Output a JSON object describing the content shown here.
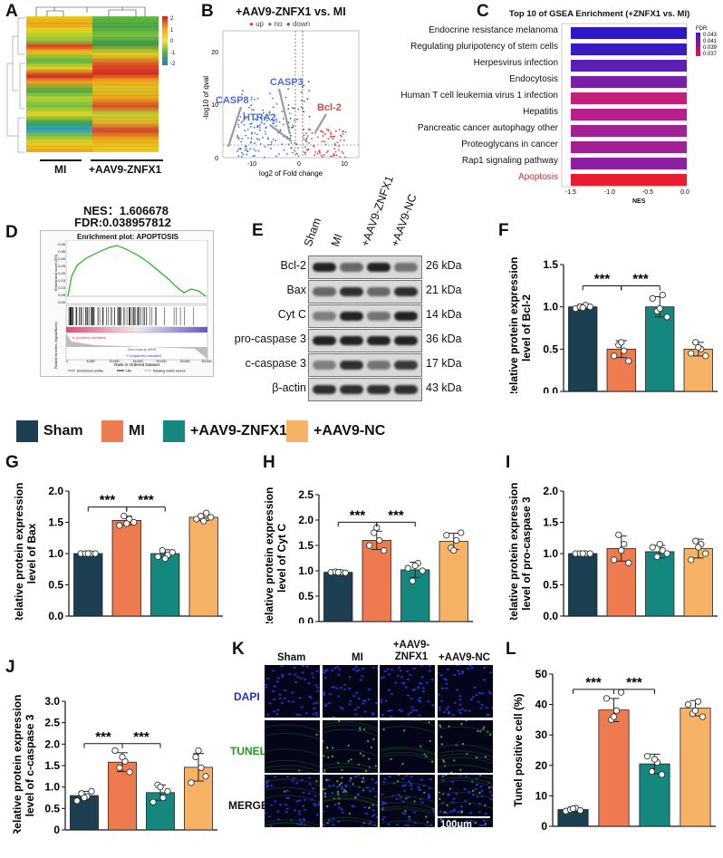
{
  "panels": {
    "A": {
      "letter": "A",
      "group_labels": [
        "MI",
        "+AAV9-ZNFX1"
      ],
      "colorbar_ticks": [
        "2",
        "1",
        "0",
        "-1",
        "-2"
      ]
    },
    "B": {
      "letter": "B",
      "title": "+AAV9-ZNFX1 vs. MI",
      "legend": [
        "up",
        "no",
        "down"
      ],
      "xlabel": "log2 of Fold change",
      "ylabel": "-log10 of qval",
      "xticks": [
        "-10",
        "0",
        "10"
      ],
      "yticks": [
        "0",
        "10",
        "20"
      ],
      "genes": [
        "CASP3",
        "CASP8",
        "HTRA2",
        "Bcl-2"
      ]
    },
    "C": {
      "letter": "C",
      "title": "Top 10 of GSEA Enrichment (+ZNFX1 vs. MI)",
      "fdr_title": "FDR",
      "fdr_ticks": [
        "0.043",
        "0.041",
        "0.039",
        "0.037"
      ],
      "xlabel": "NES",
      "xticks": [
        "-1.5",
        "-1.0",
        "-0.5",
        "0.0"
      ]
    },
    "D": {
      "letter": "D",
      "nes": "NES：1.606678",
      "fdr": "FDR:0.038957812",
      "plot_title": "Enrichment plot: APOPTOSIS",
      "es_label": "Enrichment score (ES)",
      "rank_label": "Ranked list metric (Signal2Noise)",
      "xlabel": "Rank in Ordered Dataset",
      "pos_text": "'ts' (positively correlated)",
      "neg_text": "'0' (negatively correlated)",
      "zero_text": "Zero cross at 19249",
      "legend": [
        "Enrichment profile",
        "Hits",
        "Ranking metric scores"
      ],
      "yticks": [
        "0.40",
        "0.35",
        "0.30",
        "0.25",
        "0.20",
        "0.15",
        "0.10",
        "0.05",
        "0.00"
      ],
      "xticks": [
        "0",
        "5,000",
        "10,000",
        "15,000",
        "20,000",
        "25,000",
        "30,000"
      ]
    },
    "E": {
      "letter": "E",
      "lanes": [
        "Sham",
        "MI",
        "+AAV9-ZNFX1",
        "+AAV9-NC"
      ],
      "rows": [
        {
          "protein": "Bcl-2",
          "size": "26 kDa"
        },
        {
          "protein": "Bax",
          "size": "21 kDa"
        },
        {
          "protein": "Cyt C",
          "size": "14 kDa"
        },
        {
          "protein": "pro-caspase 3",
          "size": "36 kDa"
        },
        {
          "protein": "c-caspase 3",
          "size": "17 kDa"
        },
        {
          "protein": "β-actin",
          "size": "43 kDa"
        }
      ]
    },
    "F": {
      "letter": "F"
    },
    "G": {
      "letter": "G"
    },
    "H": {
      "letter": "H"
    },
    "I": {
      "letter": "I"
    },
    "J": {
      "letter": "J"
    },
    "K": {
      "letter": "K",
      "columns": [
        "Sham",
        "MI",
        "+AAV9-\nZNFX1",
        "+AAV9-NC"
      ],
      "rows": [
        "DAPI",
        "TUNEL",
        "MERGE"
      ],
      "scale": "100μm"
    },
    "L": {
      "letter": "L"
    }
  },
  "legend": {
    "items": [
      {
        "label": "Sham",
        "color": "#1d3f52"
      },
      {
        "label": "MI",
        "color": "#ee7a50"
      },
      {
        "label": "+AAV9-ZNFX1",
        "color": "#14877f"
      },
      {
        "label": "+AAV9-NC",
        "color": "#f7b266"
      }
    ]
  },
  "chart_data": [
    {
      "id": "C",
      "type": "bar",
      "orientation": "horizontal",
      "title": "Top 10 of GSEA Enrichment (+ZNFX1 vs. MI)",
      "xlabel": "NES",
      "xlim": [
        -1.6,
        0.0
      ],
      "categories": [
        "Endocrine resistance melanoma",
        "Regulating pluripotency of stem cells",
        "Herpesvirus infection",
        "Endocytosis",
        "Human T cell leukemia virus 1 infection",
        "Hepatitis",
        "Pancreatic cancer autophagy other",
        "Proteoglycans in cancer",
        "Rap1 signaling pathway",
        "Apoptosis"
      ],
      "values": [
        -1.5,
        -1.5,
        -1.5,
        -1.5,
        -1.5,
        -1.5,
        -1.5,
        -1.5,
        -1.5,
        -1.5
      ],
      "bar_colors": [
        "#2d18c6",
        "#3a1bc2",
        "#5a1fb4",
        "#7a20a6",
        "#c4207a",
        "#b7208a",
        "#a12096",
        "#a12096",
        "#8e1ea2",
        "#ea1d2e"
      ]
    },
    {
      "id": "F",
      "type": "bar",
      "ylabel": "Relative protein expression\nlevel of Bcl-2",
      "ylim": [
        0,
        1.5
      ],
      "yticks": [
        "0.0",
        "0.5",
        "1.0",
        "1.5"
      ],
      "categories": [
        "Sham",
        "MI",
        "+AAV9-ZNFX1",
        "+AAV9-NC"
      ],
      "values": [
        1.0,
        0.5,
        1.0,
        0.5
      ],
      "errors": [
        0.03,
        0.1,
        0.12,
        0.08
      ],
      "points": [
        [
          0.98,
          1.0,
          1.02,
          1.0,
          0.99
        ],
        [
          0.42,
          0.55,
          0.48,
          0.36,
          0.58
        ],
        [
          1.1,
          0.95,
          1.14,
          0.88,
          0.98
        ],
        [
          0.45,
          0.58,
          0.5,
          0.42,
          0.52
        ]
      ],
      "significance": [
        "***",
        "***"
      ]
    },
    {
      "id": "G",
      "type": "bar",
      "ylabel": "Relative protein expression\nlevel of Bax",
      "ylim": [
        0,
        2.0
      ],
      "yticks": [
        "0.0",
        "0.5",
        "1.0",
        "1.5",
        "2.0"
      ],
      "categories": [
        "Sham",
        "MI",
        "+AAV9-ZNFX1",
        "+AAV9-NC"
      ],
      "values": [
        1.0,
        1.53,
        1.0,
        1.58
      ],
      "errors": [
        0.01,
        0.07,
        0.06,
        0.05
      ],
      "points": [
        [
          1.0,
          1.0,
          1.0,
          1.0,
          1.0
        ],
        [
          1.45,
          1.6,
          1.55,
          1.5,
          1.48
        ],
        [
          0.95,
          1.05,
          0.98,
          1.02,
          0.92
        ],
        [
          1.55,
          1.6,
          1.65,
          1.58,
          1.52
        ]
      ],
      "significance": [
        "***",
        "***"
      ]
    },
    {
      "id": "H",
      "type": "bar",
      "ylabel": "Relative protein expression\nlevel of Cyt C",
      "ylim": [
        0,
        2.5
      ],
      "yticks": [
        "0.0",
        "0.5",
        "1.0",
        "1.5",
        "2.0",
        "2.5"
      ],
      "categories": [
        "Sham",
        "MI",
        "+AAV9-ZNFX1",
        "+AAV9-NC"
      ],
      "values": [
        0.97,
        1.6,
        1.02,
        1.58
      ],
      "errors": [
        0.03,
        0.18,
        0.15,
        0.16
      ],
      "points": [
        [
          0.97,
          0.98,
          0.97,
          0.96,
          0.97
        ],
        [
          1.5,
          1.75,
          1.6,
          1.4,
          1.85
        ],
        [
          1.05,
          0.8,
          1.15,
          1.0,
          1.1
        ],
        [
          1.7,
          1.45,
          1.6,
          1.75,
          1.4
        ]
      ],
      "significance": [
        "***",
        "***"
      ]
    },
    {
      "id": "I",
      "type": "bar",
      "ylabel": "Relative protein expression\nlevel of pro-caspase 3",
      "ylim": [
        0,
        2.0
      ],
      "yticks": [
        "0.0",
        "0.5",
        "1.0",
        "1.5",
        "2.0"
      ],
      "categories": [
        "Sham",
        "MI",
        "+AAV9-ZNFX1",
        "+AAV9-NC"
      ],
      "values": [
        1.0,
        1.08,
        1.03,
        1.08
      ],
      "errors": [
        0.01,
        0.2,
        0.1,
        0.15
      ],
      "points": [
        [
          1.0,
          1.0,
          1.0,
          1.0,
          1.0
        ],
        [
          0.9,
          1.3,
          1.15,
          0.85,
          1.05
        ],
        [
          1.1,
          0.95,
          1.05,
          1.0,
          1.15
        ],
        [
          0.9,
          1.2,
          1.15,
          1.0,
          1.1
        ]
      ],
      "significance": []
    },
    {
      "id": "J",
      "type": "bar",
      "ylabel": "Relative protein expression\nlevel of c-caspase 3",
      "ylim": [
        0,
        3.0
      ],
      "yticks": [
        "0",
        "0.5",
        "1.0",
        "1.5",
        "2.0",
        "2.5",
        "3.0"
      ],
      "categories": [
        "Sham",
        "MI",
        "+AAV9-ZNFX1",
        "+AAV9-NC"
      ],
      "values": [
        0.8,
        1.58,
        0.87,
        1.46
      ],
      "errors": [
        0.1,
        0.22,
        0.18,
        0.32
      ],
      "points": [
        [
          0.68,
          0.85,
          0.78,
          0.9,
          0.75
        ],
        [
          1.85,
          1.45,
          1.6,
          1.35,
          1.7
        ],
        [
          0.65,
          1.05,
          0.75,
          0.9,
          1.0
        ],
        [
          1.1,
          1.7,
          1.45,
          1.25,
          1.85
        ]
      ],
      "significance": [
        "***",
        "***"
      ]
    },
    {
      "id": "L",
      "type": "bar",
      "ylabel": "Tunel positive cell (%)",
      "ylim": [
        0,
        50
      ],
      "yticks": [
        "0",
        "10",
        "20",
        "30",
        "40",
        "50"
      ],
      "categories": [
        "Sham",
        "MI",
        "+AAV9-ZNFX1",
        "+AAV9-NC"
      ],
      "values": [
        5.5,
        38.2,
        20.5,
        38.8
      ],
      "errors": [
        0.8,
        3.8,
        3.2,
        2.5
      ],
      "points": [
        [
          5.0,
          5.5,
          6.0,
          5.2,
          5.8
        ],
        [
          42.0,
          35.0,
          38.0,
          44.0,
          36.0
        ],
        [
          23.0,
          18.0,
          21.0,
          17.0,
          22.0
        ],
        [
          40.0,
          37.0,
          41.0,
          36.0,
          38.0
        ]
      ],
      "significance": [
        "***",
        "***"
      ]
    }
  ]
}
